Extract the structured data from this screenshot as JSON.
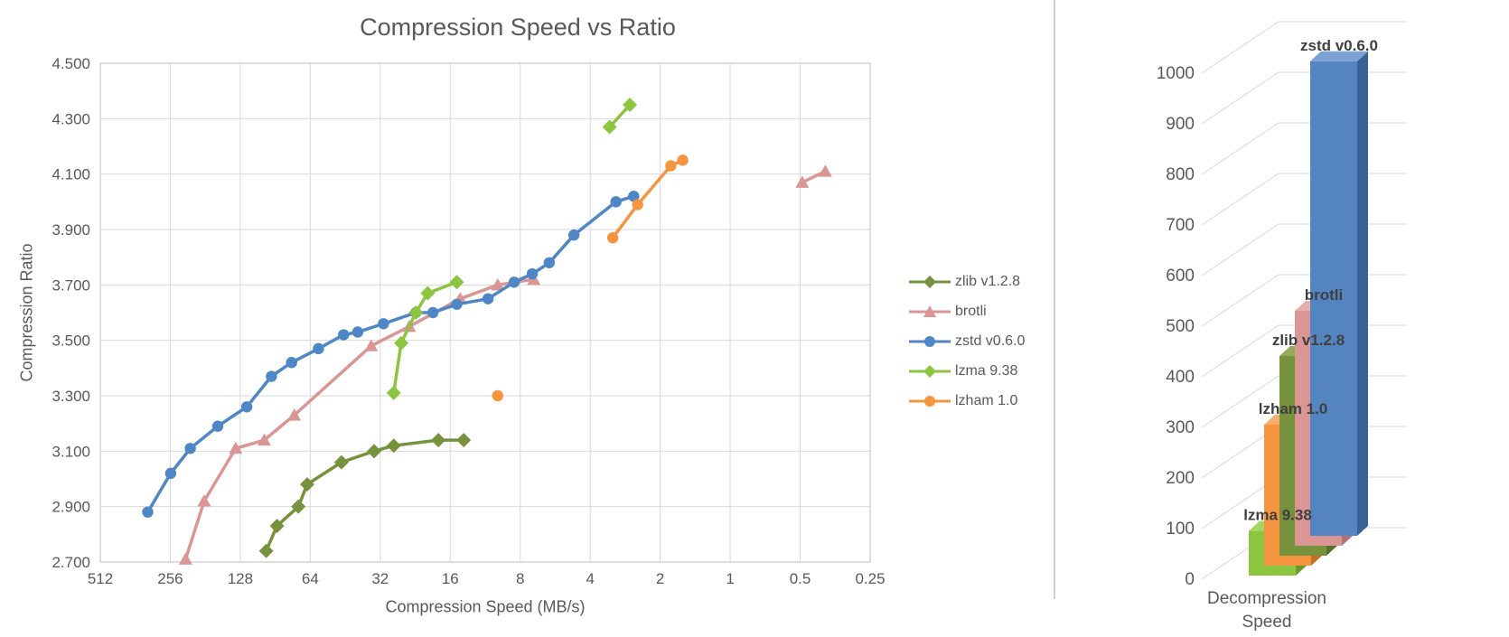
{
  "colors": {
    "grid": "#D9D9D9",
    "plot_border": "#C9C9C9",
    "axis_text": "#595959",
    "divider": "#D0CECE",
    "bar_label_text": "#3F3F3F"
  },
  "chart_data": [
    {
      "type": "line",
      "title": "Compression Speed vs Ratio",
      "xlabel": "Compression Speed (MB/s)",
      "ylabel": "Compression Ratio",
      "x_scale": "log2-reversed",
      "x_ticks": [
        "512",
        "256",
        "128",
        "64",
        "32",
        "16",
        "8",
        "4",
        "2",
        "1",
        "0.5",
        "0.25"
      ],
      "y_ticks": [
        "4.500",
        "4.300",
        "4.100",
        "3.900",
        "3.700",
        "3.500",
        "3.300",
        "3.100",
        "2.900",
        "2.700"
      ],
      "ylim": [
        2.7,
        4.5
      ],
      "grid": true,
      "legend_position": "right",
      "series": [
        {
          "name": "zlib v1.2.8",
          "color": "#76923C",
          "marker": "diamond",
          "segments": [
            [
              [
                99,
                2.74
              ],
              [
                89,
                2.83
              ],
              [
                72,
                2.9
              ],
              [
                66,
                2.98
              ],
              [
                47,
                3.06
              ],
              [
                34,
                3.1
              ],
              [
                28,
                3.12
              ],
              [
                18,
                3.14
              ],
              [
                14,
                3.14
              ]
            ]
          ]
        },
        {
          "name": "brotli",
          "color": "#D99694",
          "marker": "triangle",
          "segments": [
            [
              [
                220,
                2.71
              ],
              [
                183,
                2.92
              ],
              [
                134,
                3.11
              ],
              [
                101,
                3.14
              ],
              [
                75,
                3.23
              ],
              [
                35,
                3.48
              ],
              [
                24,
                3.55
              ],
              [
                14.5,
                3.65
              ],
              [
                10,
                3.7
              ],
              [
                7,
                3.72
              ]
            ],
            [
              [
                0.49,
                4.07
              ],
              [
                0.39,
                4.11
              ]
            ]
          ]
        },
        {
          "name": "zstd v0.6.0",
          "color": "#4F86C6",
          "marker": "circle",
          "segments": [
            [
              [
                320,
                2.88
              ],
              [
                255,
                3.02
              ],
              [
                210,
                3.11
              ],
              [
                160,
                3.19
              ],
              [
                120,
                3.26
              ],
              [
                94,
                3.37
              ],
              [
                77,
                3.42
              ],
              [
                59,
                3.47
              ],
              [
                46,
                3.52
              ],
              [
                40,
                3.53
              ],
              [
                31,
                3.56
              ],
              [
                22.5,
                3.6
              ],
              [
                19,
                3.6
              ],
              [
                15,
                3.63
              ],
              [
                11,
                3.65
              ],
              [
                8.5,
                3.71
              ],
              [
                7.1,
                3.74
              ],
              [
                6,
                3.78
              ],
              [
                4.7,
                3.88
              ],
              [
                3.1,
                4.0
              ],
              [
                2.6,
                4.02
              ]
            ]
          ]
        },
        {
          "name": "lzma 9.38",
          "color": "#8CC540",
          "marker": "diamond",
          "segments": [
            [
              [
                28,
                3.31
              ],
              [
                26,
                3.49
              ],
              [
                22.5,
                3.6
              ],
              [
                20,
                3.67
              ],
              [
                15,
                3.71
              ]
            ],
            [
              [
                3.3,
                4.27
              ],
              [
                2.7,
                4.35
              ]
            ]
          ]
        },
        {
          "name": "lzham 1.0",
          "color": "#F6953F",
          "marker": "circle",
          "segments": [
            [
              [
                10,
                3.3
              ]
            ],
            [
              [
                3.2,
                3.87
              ],
              [
                2.5,
                3.99
              ],
              [
                1.8,
                4.13
              ],
              [
                1.6,
                4.15
              ]
            ]
          ]
        }
      ]
    },
    {
      "type": "bar",
      "variant": "3d-column",
      "category": "Decompression Speed",
      "category_lines": {
        "line1": "Decompression",
        "line2": "Speed"
      },
      "xlabel": "Decompression Speed",
      "ylabel": "",
      "y_ticks": [
        0,
        100,
        200,
        300,
        400,
        500,
        600,
        700,
        800,
        900,
        1000
      ],
      "ylim": [
        0,
        1000
      ],
      "bars": [
        {
          "name": "lzma 9.38",
          "value": 95,
          "color": "#8CC540",
          "top_color": "#A6D463",
          "side_color": "#6A9A2C"
        },
        {
          "name": "lzham 1.0",
          "value": 300,
          "color": "#F6953F",
          "top_color": "#F8AE6C",
          "side_color": "#C76F1E"
        },
        {
          "name": "zlib v1.2.8",
          "value": 425,
          "color": "#76923C",
          "top_color": "#92AC58",
          "side_color": "#58702A"
        },
        {
          "name": "brotli",
          "value": 500,
          "color": "#D99694",
          "top_color": "#E4B0AE",
          "side_color": "#B17270"
        },
        {
          "name": "zstd v0.6.0",
          "value": 1010,
          "color": "#5585C1",
          "top_color": "#7AA3D4",
          "side_color": "#3A6395"
        }
      ]
    }
  ]
}
